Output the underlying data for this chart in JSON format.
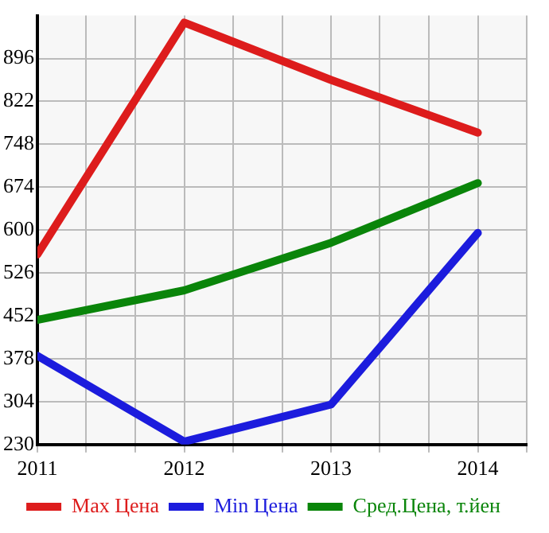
{
  "chart_data": {
    "type": "line",
    "x": [
      2011,
      2012,
      2013,
      2014
    ],
    "series": [
      {
        "name": "Max Цена",
        "color": "#dd1c1c",
        "values": [
          558,
          958,
          859,
          768
        ]
      },
      {
        "name": "Min Цена",
        "color": "#1c1cdd",
        "values": [
          383,
          235,
          299,
          595
        ]
      },
      {
        "name": "Сред.Цена, т.йен",
        "color": "#0a850a",
        "values": [
          445,
          496,
          578,
          681
        ]
      }
    ],
    "xlim": [
      2011,
      2014.333
    ],
    "xticks": [
      2011,
      {
        "value": 2011.333,
        "label": null
      },
      {
        "value": 2011.667,
        "label": null
      },
      2012,
      {
        "value": 2012.333,
        "label": null
      },
      {
        "value": 2012.667,
        "label": null
      },
      2013,
      {
        "value": 2013.333,
        "label": null
      },
      {
        "value": 2013.667,
        "label": null
      },
      2014,
      {
        "value": 2014.333,
        "label": null
      }
    ],
    "ylim": [
      230,
      970
    ],
    "yticks": [
      230,
      304,
      378,
      452,
      526,
      600,
      674,
      748,
      822,
      896
    ],
    "grid": true,
    "legend": "bottom",
    "marker": "none",
    "line_style": "solid"
  }
}
